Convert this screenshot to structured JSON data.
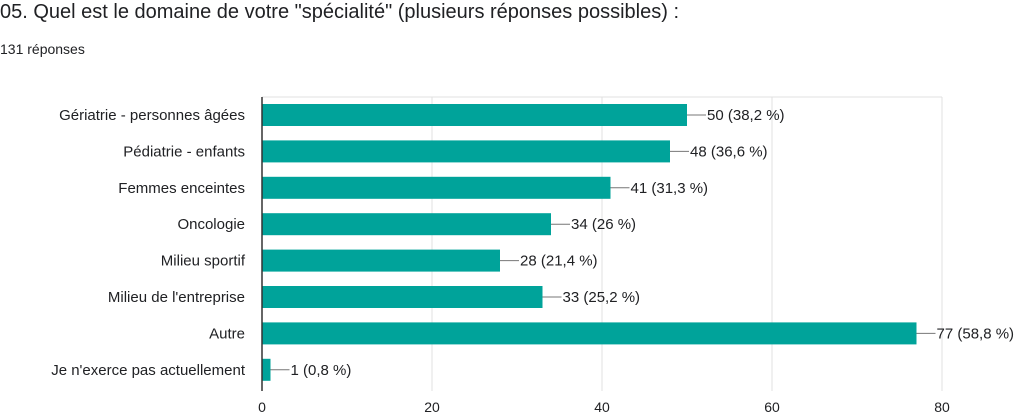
{
  "question": {
    "title": "05. Quel est le domaine de votre \"spécialité\" (plusieurs réponses possibles) :",
    "response_count": "131 réponses"
  },
  "colors": {
    "bar": "#00a39a",
    "grid": "#e0e0e0",
    "axis": "#333333",
    "text": "#202124"
  },
  "chart_data": {
    "type": "bar",
    "orientation": "horizontal",
    "categories": [
      "Gériatrie - personnes âgées",
      "Pédiatrie - enfants",
      "Femmes enceintes",
      "Oncologie",
      "Milieu sportif",
      "Milieu de l'entreprise",
      "Autre",
      "Je n'exerce pas actuellement"
    ],
    "values": [
      50,
      48,
      41,
      34,
      28,
      33,
      77,
      1
    ],
    "data_labels": [
      "50 (38,2 %)",
      "48 (36,6 %)",
      "41 (31,3 %)",
      "34 (26 %)",
      "28 (21,4 %)",
      "33 (25,2 %)",
      "77 (58,8 %)",
      "1 (0,8 %)"
    ],
    "xlim": [
      0,
      80
    ],
    "xticks": [
      0,
      20,
      40,
      60,
      80
    ],
    "grid": true,
    "legend": "none"
  }
}
